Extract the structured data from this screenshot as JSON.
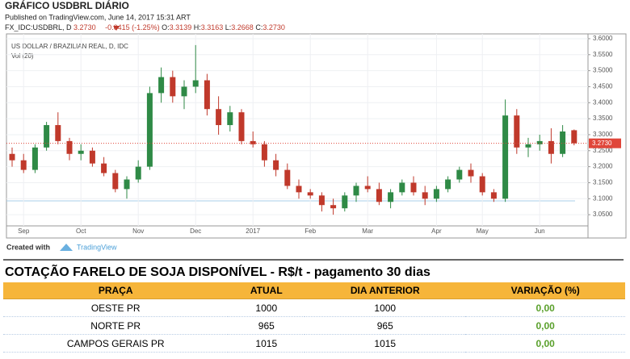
{
  "header": {
    "title": "GRÁFICO USDBRL DIÁRIO",
    "published": "Published on TradingView.com, June 14, 2017 15:31 ART"
  },
  "quote": {
    "symbol": "FX_IDC:USDBRL, D",
    "last": "3.2730",
    "change": "-0.0415 (-1.25%)",
    "open_label": "O:",
    "open": "3.3139",
    "high_label": "H:",
    "high": "3.3163",
    "low_label": "L:",
    "low": "3.2668",
    "close_label": "C:",
    "close": "3.2730"
  },
  "chart_data": {
    "type": "candlestick",
    "title": "US DOLLAR / BRAZILIAN REAL, D, IDC",
    "subtitle": "Vol (20)",
    "categories": [
      null,
      "Sep",
      null,
      null,
      null,
      null,
      "Oct",
      null,
      null,
      null,
      null,
      "Nov",
      null,
      null,
      null,
      null,
      "Dec",
      null,
      null,
      null,
      null,
      "2017",
      null,
      null,
      null,
      null,
      "Feb",
      null,
      null,
      null,
      null,
      "Mar",
      null,
      null,
      null,
      null,
      null,
      "Apr",
      null,
      null,
      null,
      "May",
      null,
      null,
      null,
      null,
      "Jun",
      null,
      null,
      null
    ],
    "open": [
      3.24,
      3.22,
      3.19,
      3.26,
      3.33,
      3.28,
      3.24,
      3.25,
      3.21,
      3.18,
      3.13,
      3.16,
      3.2,
      3.43,
      3.48,
      3.42,
      3.45,
      3.47,
      3.38,
      3.33,
      3.37,
      3.28,
      3.27,
      3.22,
      3.19,
      3.14,
      3.12,
      3.11,
      3.08,
      3.07,
      3.11,
      3.14,
      3.13,
      3.09,
      3.12,
      3.15,
      3.12,
      3.1,
      3.13,
      3.16,
      3.19,
      3.17,
      3.12,
      3.1,
      3.36,
      3.26,
      3.27,
      3.28,
      3.24,
      3.3139
    ],
    "high": [
      3.26,
      3.24,
      3.27,
      3.34,
      3.37,
      3.29,
      3.27,
      3.26,
      3.23,
      3.19,
      3.17,
      3.22,
      3.45,
      3.51,
      3.5,
      3.47,
      3.58,
      3.49,
      3.42,
      3.39,
      3.38,
      3.31,
      3.28,
      3.24,
      3.21,
      3.16,
      3.13,
      3.12,
      3.1,
      3.12,
      3.15,
      3.17,
      3.15,
      3.13,
      3.16,
      3.17,
      3.14,
      3.14,
      3.17,
      3.2,
      3.21,
      3.18,
      3.13,
      3.41,
      3.38,
      3.29,
      3.3,
      3.32,
      3.33,
      3.3163
    ],
    "low": [
      3.2,
      3.18,
      3.18,
      3.25,
      3.27,
      3.22,
      3.22,
      3.2,
      3.17,
      3.12,
      3.1,
      3.15,
      3.19,
      3.4,
      3.4,
      3.38,
      3.43,
      3.36,
      3.3,
      3.31,
      3.27,
      3.26,
      3.2,
      3.17,
      3.13,
      3.1,
      3.1,
      3.06,
      3.05,
      3.06,
      3.09,
      3.12,
      3.08,
      3.07,
      3.11,
      3.11,
      3.08,
      3.09,
      3.12,
      3.15,
      3.15,
      3.11,
      3.09,
      3.09,
      3.24,
      3.23,
      3.25,
      3.21,
      3.23,
      3.2668
    ],
    "close": [
      3.22,
      3.19,
      3.26,
      3.33,
      3.28,
      3.24,
      3.25,
      3.21,
      3.18,
      3.13,
      3.16,
      3.2,
      3.43,
      3.48,
      3.42,
      3.45,
      3.47,
      3.38,
      3.33,
      3.37,
      3.28,
      3.27,
      3.22,
      3.19,
      3.14,
      3.12,
      3.11,
      3.08,
      3.07,
      3.11,
      3.14,
      3.13,
      3.09,
      3.12,
      3.15,
      3.12,
      3.1,
      3.13,
      3.16,
      3.19,
      3.17,
      3.12,
      3.1,
      3.36,
      3.26,
      3.27,
      3.28,
      3.24,
      3.31,
      3.273
    ],
    "up_color": "#2f8a46",
    "down_color": "#c0392b",
    "last_price": {
      "value": 3.273,
      "label": "3.2730"
    },
    "last_color": "#e0463a",
    "ylim": [
      3.015,
      3.615
    ],
    "yticks": [
      {
        "value": 3.05,
        "label": "3.0500"
      },
      {
        "value": 3.1,
        "label": "3.1000"
      },
      {
        "value": 3.15,
        "label": "3.1500"
      },
      {
        "value": 3.2,
        "label": "3.2000"
      },
      {
        "value": 3.25,
        "label": "3.2500"
      },
      {
        "value": 3.3,
        "label": "3.3000"
      },
      {
        "value": 3.35,
        "label": "3.3500"
      },
      {
        "value": 3.4,
        "label": "3.4000"
      },
      {
        "value": 3.45,
        "label": "3.4500"
      },
      {
        "value": 3.5,
        "label": "3.5000"
      },
      {
        "value": 3.55,
        "label": "3.5500"
      },
      {
        "value": 3.6,
        "label": "3.6000"
      }
    ],
    "grid": true
  },
  "footer": {
    "created": "Created with",
    "brand": "TradingView"
  },
  "table": {
    "title": "COTAÇÃO FARELO DE SOJA DISPONÍVEL - R$/t - pagamento 30 dias",
    "columns": [
      "PRAÇA",
      "ATUAL",
      "DIA ANTERIOR",
      "VARIAÇÃO (%)"
    ],
    "rows": [
      [
        "OESTE PR",
        1000,
        1000,
        "0,00"
      ],
      [
        "NORTE PR",
        965,
        965,
        "0,00"
      ],
      [
        "CAMPOS GERAIS PR",
        1015,
        1015,
        "0,00"
      ]
    ]
  }
}
